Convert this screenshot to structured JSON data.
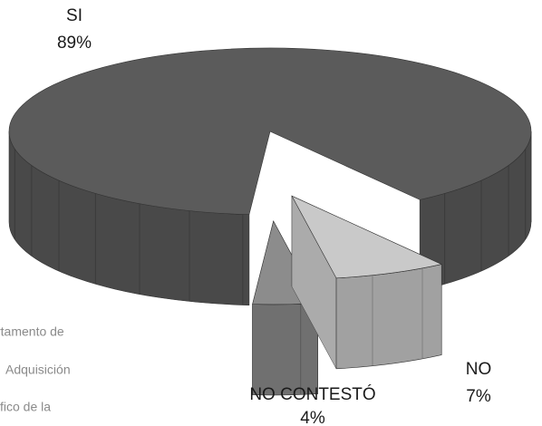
{
  "chart_data": {
    "type": "pie",
    "categories": [
      "SI",
      "NO",
      "NO CONTESTÓ"
    ],
    "values": [
      89,
      7,
      4
    ],
    "value_labels": [
      "89%",
      "7%",
      "4%"
    ],
    "colors": [
      "#5b5b5b",
      "#c9c9c9",
      "#8c8c8c"
    ]
  },
  "background_text": [
    "rtamento de",
    "Adquisición",
    "fico de la"
  ]
}
